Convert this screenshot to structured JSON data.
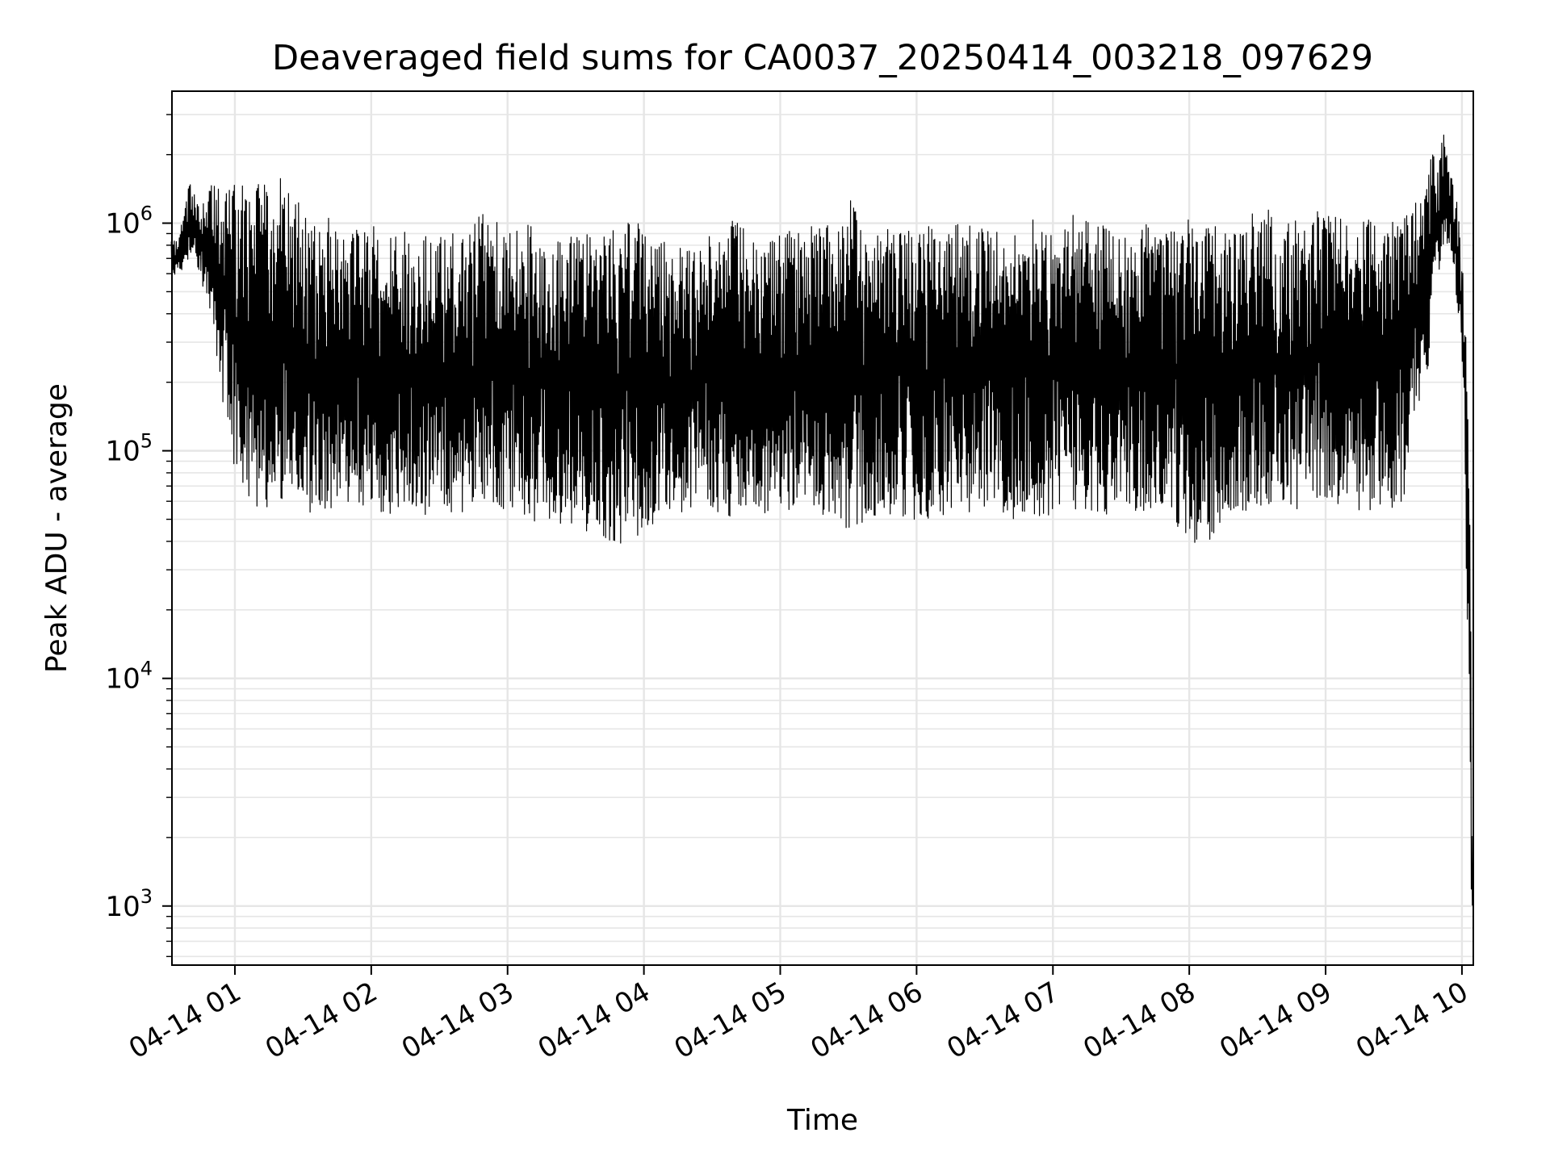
{
  "chart_data": {
    "type": "line",
    "title": "Deaveraged field sums for CA0037_20250414_003218_097629",
    "xlabel": "Time",
    "ylabel": "Peak ADU - average",
    "x_scale": "time",
    "y_scale": "log",
    "xlim": [
      "2025-04-14 00:32:18",
      "2025-04-14 10:05:00"
    ],
    "ylim": [
      550,
      3800000
    ],
    "grid": true,
    "legend": "none",
    "line_color": "#000000",
    "grid_color": "#e6e6e6",
    "x_ticks": [
      {
        "value": "2025-04-14 01:00",
        "label": "04-14 01"
      },
      {
        "value": "2025-04-14 02:00",
        "label": "04-14 02"
      },
      {
        "value": "2025-04-14 03:00",
        "label": "04-14 03"
      },
      {
        "value": "2025-04-14 04:00",
        "label": "04-14 04"
      },
      {
        "value": "2025-04-14 05:00",
        "label": "04-14 05"
      },
      {
        "value": "2025-04-14 06:00",
        "label": "04-14 06"
      },
      {
        "value": "2025-04-14 07:00",
        "label": "04-14 07"
      },
      {
        "value": "2025-04-14 08:00",
        "label": "04-14 08"
      },
      {
        "value": "2025-04-14 09:00",
        "label": "04-14 09"
      },
      {
        "value": "2025-04-14 10:00",
        "label": "04-14 10"
      }
    ],
    "y_ticks": [
      {
        "value": 1000,
        "base": "10",
        "exp": "3"
      },
      {
        "value": 10000,
        "base": "10",
        "exp": "4"
      },
      {
        "value": 100000,
        "base": "10",
        "exp": "5"
      },
      {
        "value": 1000000,
        "base": "10",
        "exp": "6"
      }
    ],
    "series": [
      {
        "x": [
          "2025-04-14 00:32",
          "2025-04-14 00:35",
          "2025-04-14 00:40",
          "2025-04-14 00:45",
          "2025-04-14 00:47",
          "2025-04-14 00:50",
          "2025-04-14 00:52",
          "2025-04-14 00:55",
          "2025-04-14 01:00",
          "2025-04-14 01:05",
          "2025-04-14 01:10",
          "2025-04-14 01:15",
          "2025-04-14 01:20",
          "2025-04-14 01:25",
          "2025-04-14 01:30",
          "2025-04-14 01:35",
          "2025-04-14 01:40",
          "2025-04-14 01:45",
          "2025-04-14 01:50",
          "2025-04-14 01:55",
          "2025-04-14 02:00",
          "2025-04-14 02:10",
          "2025-04-14 02:20",
          "2025-04-14 02:30",
          "2025-04-14 02:40",
          "2025-04-14 02:50",
          "2025-04-14 03:00",
          "2025-04-14 03:10",
          "2025-04-14 03:20",
          "2025-04-14 03:30",
          "2025-04-14 03:40",
          "2025-04-14 03:45",
          "2025-04-14 03:50",
          "2025-04-14 03:55",
          "2025-04-14 04:00",
          "2025-04-14 04:10",
          "2025-04-14 04:20",
          "2025-04-14 04:30",
          "2025-04-14 04:40",
          "2025-04-14 04:50",
          "2025-04-14 05:00",
          "2025-04-14 05:10",
          "2025-04-14 05:20",
          "2025-04-14 05:30",
          "2025-04-14 05:40",
          "2025-04-14 05:50",
          "2025-04-14 06:00",
          "2025-04-14 06:10",
          "2025-04-14 06:20",
          "2025-04-14 06:30",
          "2025-04-14 06:40",
          "2025-04-14 06:50",
          "2025-04-14 07:00",
          "2025-04-14 07:10",
          "2025-04-14 07:20",
          "2025-04-14 07:30",
          "2025-04-14 07:40",
          "2025-04-14 07:50",
          "2025-04-14 07:55",
          "2025-04-14 08:00",
          "2025-04-14 08:10",
          "2025-04-14 08:20",
          "2025-04-14 08:30",
          "2025-04-14 08:40",
          "2025-04-14 08:50",
          "2025-04-14 09:00",
          "2025-04-14 09:10",
          "2025-04-14 09:20",
          "2025-04-14 09:30",
          "2025-04-14 09:35",
          "2025-04-14 09:40",
          "2025-04-14 09:45",
          "2025-04-14 09:48",
          "2025-04-14 09:50",
          "2025-04-14 09:52",
          "2025-04-14 09:54",
          "2025-04-14 09:56",
          "2025-04-14 09:58",
          "2025-04-14 10:00",
          "2025-04-14 10:02",
          "2025-04-14 10:04",
          "2025-04-14 10:05"
        ],
        "hi": [
          850000,
          830000,
          1500000,
          1200000,
          1300000,
          1500000,
          1600000,
          1400000,
          1500000,
          1450000,
          1700000,
          1500000,
          1600000,
          1300000,
          1200000,
          1000000,
          1100000,
          900000,
          1000000,
          1100000,
          1000000,
          950000,
          900000,
          1000000,
          850000,
          1150000,
          900000,
          1000000,
          800000,
          950000,
          850000,
          900000,
          1000000,
          1200000,
          900000,
          850000,
          800000,
          900000,
          1100000,
          800000,
          900000,
          1000000,
          950000,
          1300000,
          900000,
          1000000,
          900000,
          1050000,
          1000000,
          950000,
          900000,
          1100000,
          1000000,
          1100000,
          1000000,
          900000,
          1000000,
          900000,
          1000000,
          1200000,
          1000000,
          900000,
          1200000,
          1100000,
          1200000,
          1100000,
          1050000,
          1200000,
          1100000,
          1300000,
          1500000,
          1800000,
          2200000,
          2000000,
          2500000,
          1800000,
          1500000,
          1200000,
          700000,
          250000,
          3500,
          1000
        ],
        "lo": [
          600000,
          580000,
          700000,
          600000,
          400000,
          350000,
          250000,
          150000,
          80000,
          60000,
          55000,
          55000,
          60000,
          70000,
          65000,
          45000,
          55000,
          55000,
          60000,
          50000,
          55000,
          50000,
          50000,
          55000,
          50000,
          55000,
          55000,
          50000,
          45000,
          45000,
          40000,
          40000,
          38000,
          38000,
          45000,
          50000,
          55000,
          55000,
          50000,
          52000,
          55000,
          55000,
          52000,
          45000,
          50000,
          52000,
          48000,
          50000,
          50000,
          55000,
          48000,
          52000,
          50000,
          55000,
          50000,
          55000,
          52000,
          60000,
          45000,
          38000,
          40000,
          55000,
          50000,
          55000,
          55000,
          60000,
          55000,
          55000,
          55000,
          60000,
          150000,
          200000,
          500000,
          600000,
          800000,
          800000,
          700000,
          400000,
          200000,
          20000,
          1200,
          800
        ]
      }
    ]
  }
}
